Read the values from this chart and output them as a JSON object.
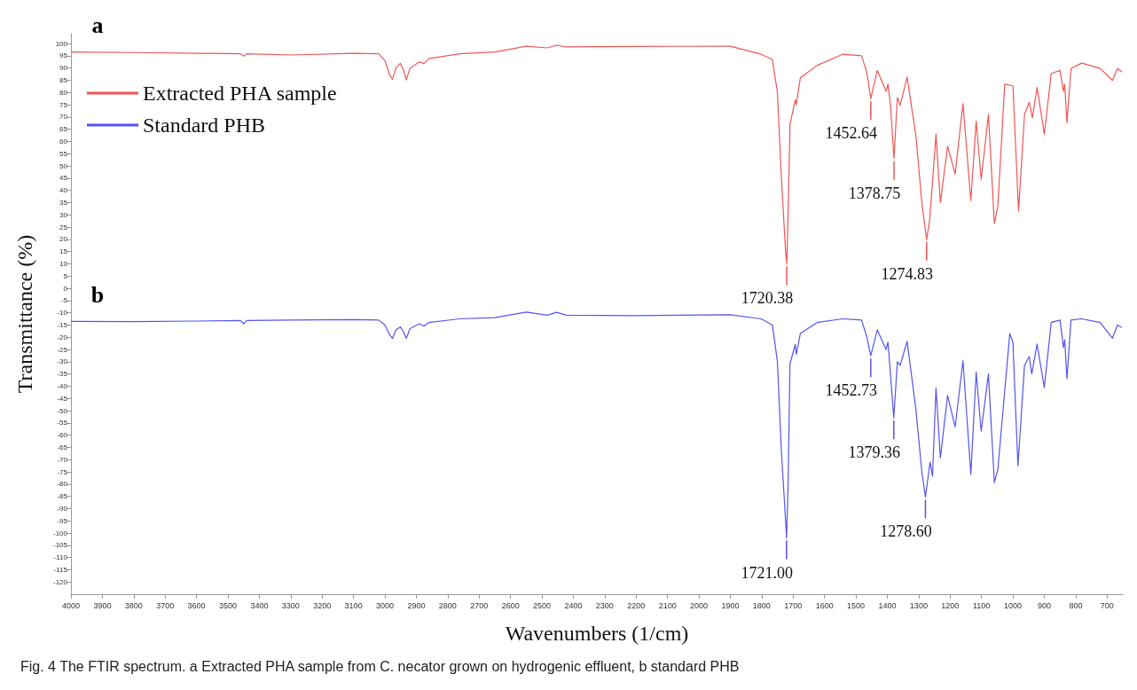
{
  "chart_data": {
    "type": "line",
    "xlabel": "Wavenumbers (1/cm)",
    "ylabel": "Transmittance (%)",
    "xlim": [
      4000,
      650
    ],
    "xticks": [
      4000,
      3900,
      3800,
      3700,
      3600,
      3500,
      3400,
      3300,
      3200,
      3100,
      3000,
      2900,
      2800,
      2700,
      2600,
      2500,
      2400,
      2300,
      2200,
      2100,
      2000,
      1900,
      1800,
      1700,
      1600,
      1500,
      1400,
      1300,
      1200,
      1100,
      1000,
      900,
      800,
      700
    ],
    "ylim": [
      -125,
      104
    ],
    "yticks": [
      -120,
      -115,
      -110,
      -105,
      -100,
      -95,
      -90,
      -85,
      -80,
      -75,
      -70,
      -65,
      -60,
      -55,
      -50,
      -45,
      -40,
      -35,
      -30,
      -25,
      -20,
      -15,
      -10,
      -5,
      0,
      5,
      10,
      15,
      20,
      25,
      30,
      35,
      40,
      45,
      50,
      55,
      60,
      65,
      70,
      75,
      80,
      85,
      90,
      95,
      100
    ],
    "grid": false,
    "legend": "top left",
    "marker": "none",
    "line_style": "solid",
    "series": [
      {
        "name": "Extracted PHA sample",
        "color": "#f05454",
        "x": [
          4000,
          3800,
          3600,
          3460,
          3450,
          3440,
          3300,
          3100,
          3020,
          3000,
          2985,
          2976,
          2965,
          2951,
          2940,
          2932,
          2920,
          2890,
          2876,
          2860,
          2762,
          2650,
          2550,
          2483,
          2453,
          2422,
          2200,
          1900,
          1802,
          1766,
          1750,
          1738,
          1724,
          1720.38,
          1716,
          1710,
          1693,
          1690,
          1677,
          1624,
          1543,
          1482,
          1465,
          1452.64,
          1432,
          1404,
          1398,
          1390,
          1378.75,
          1368,
          1359,
          1337,
          1309,
          1290,
          1274.83,
          1265,
          1245,
          1231,
          1208,
          1184,
          1159,
          1134,
          1117,
          1101,
          1078,
          1059,
          1048,
          1026,
          1000,
          982,
          963,
          948,
          938,
          923,
          900,
          878,
          850,
          839,
          835,
          828,
          815,
          781,
          722,
          683,
          667,
          653
        ],
        "values": [
          96.5,
          96.3,
          96,
          95.8,
          94.8,
          95.8,
          95.3,
          96,
          95.8,
          93,
          87,
          85.4,
          90,
          91.9,
          89,
          85.1,
          90,
          92.5,
          91.8,
          93.8,
          95.8,
          96.5,
          98.9,
          98.2,
          99.3,
          98.6,
          98.8,
          98.9,
          95.6,
          93.5,
          80,
          46.6,
          15,
          10,
          30,
          67,
          77,
          75,
          86,
          91,
          95.6,
          95,
          88,
          77.5,
          89,
          80.5,
          83.4,
          75,
          53,
          78,
          74.7,
          86.3,
          62.4,
          35,
          20,
          28,
          63,
          35,
          58,
          46.6,
          75.4,
          35.8,
          68.3,
          44.5,
          71,
          26.5,
          33.6,
          83.4,
          82.7,
          31.5,
          71,
          76,
          69.6,
          82,
          63,
          87.7,
          89,
          80.5,
          83.4,
          67.6,
          89.8,
          92,
          89.8,
          84.9,
          89.8,
          88.4
        ]
      },
      {
        "name": "Standard PHB",
        "color": "#5454f0",
        "x": [
          4000,
          3800,
          3600,
          3460,
          3450,
          3440,
          3300,
          3100,
          3020,
          3000,
          2985,
          2976,
          2965,
          2951,
          2940,
          2932,
          2920,
          2890,
          2876,
          2860,
          2762,
          2650,
          2550,
          2483,
          2453,
          2422,
          2200,
          1900,
          1802,
          1766,
          1750,
          1738,
          1724,
          1721.0,
          1716,
          1710,
          1693,
          1690,
          1677,
          1624,
          1543,
          1482,
          1465,
          1452.73,
          1432,
          1404,
          1398,
          1390,
          1379.36,
          1368,
          1359,
          1337,
          1309,
          1290,
          1278.6,
          1264,
          1256,
          1245,
          1231,
          1208,
          1184,
          1159,
          1134,
          1117,
          1101,
          1078,
          1059,
          1048,
          1010,
          1000,
          984,
          963,
          948,
          940,
          923,
          900,
          878,
          850,
          839,
          835,
          828,
          815,
          781,
          722,
          683,
          667,
          653
        ],
        "values": [
          -13.5,
          -13.6,
          -13.4,
          -13.2,
          -14.5,
          -13.2,
          -13,
          -12.8,
          -13,
          -15,
          -19,
          -20.5,
          -17,
          -15.8,
          -18,
          -20.5,
          -16.5,
          -14.5,
          -15.5,
          -14,
          -12.5,
          -12,
          -9.7,
          -11,
          -9.8,
          -11,
          -11.2,
          -10.8,
          -12.5,
          -15,
          -30,
          -65,
          -95,
          -102,
          -80,
          -30.8,
          -22.9,
          -27,
          -18.5,
          -14,
          -12.5,
          -13,
          -20,
          -27.6,
          -17,
          -25,
          -22,
          -35,
          -53,
          -30,
          -31.5,
          -21.7,
          -49.4,
          -75,
          -85.3,
          -71,
          -76.8,
          -40.8,
          -69.3,
          -43.8,
          -56.7,
          -29.6,
          -76,
          -34.3,
          -58.4,
          -35,
          -79.4,
          -74,
          -18.5,
          -22,
          -72.5,
          -31.5,
          -27.9,
          -35,
          -22.8,
          -40.6,
          -14,
          -13,
          -24.2,
          -21,
          -37,
          -13,
          -12.5,
          -14,
          -20.4,
          -15,
          -16
        ]
      }
    ],
    "annotations": [
      "a",
      "b",
      {
        "text": "1720.38",
        "x": 1720.38,
        "y": 10
      },
      {
        "text": "1452.64",
        "x": 1452.64,
        "y": 77.5
      },
      {
        "text": "1378.75",
        "x": 1378.75,
        "y": 53
      },
      {
        "text": "1274.83",
        "x": 1274.83,
        "y": 20
      },
      {
        "text": "1721.00",
        "x": 1721.0,
        "y": -102
      },
      {
        "text": "1452.73",
        "x": 1452.73,
        "y": -27.6
      },
      {
        "text": "1379.36",
        "x": 1379.36,
        "y": -53
      },
      {
        "text": "1278.60",
        "x": 1278.6,
        "y": -85.3
      },
      "Fig. 4 The FTIR spectrum. a Extracted PHA sample from C. necator grown on hydrogenic effluent, b standard PHB"
    ]
  }
}
